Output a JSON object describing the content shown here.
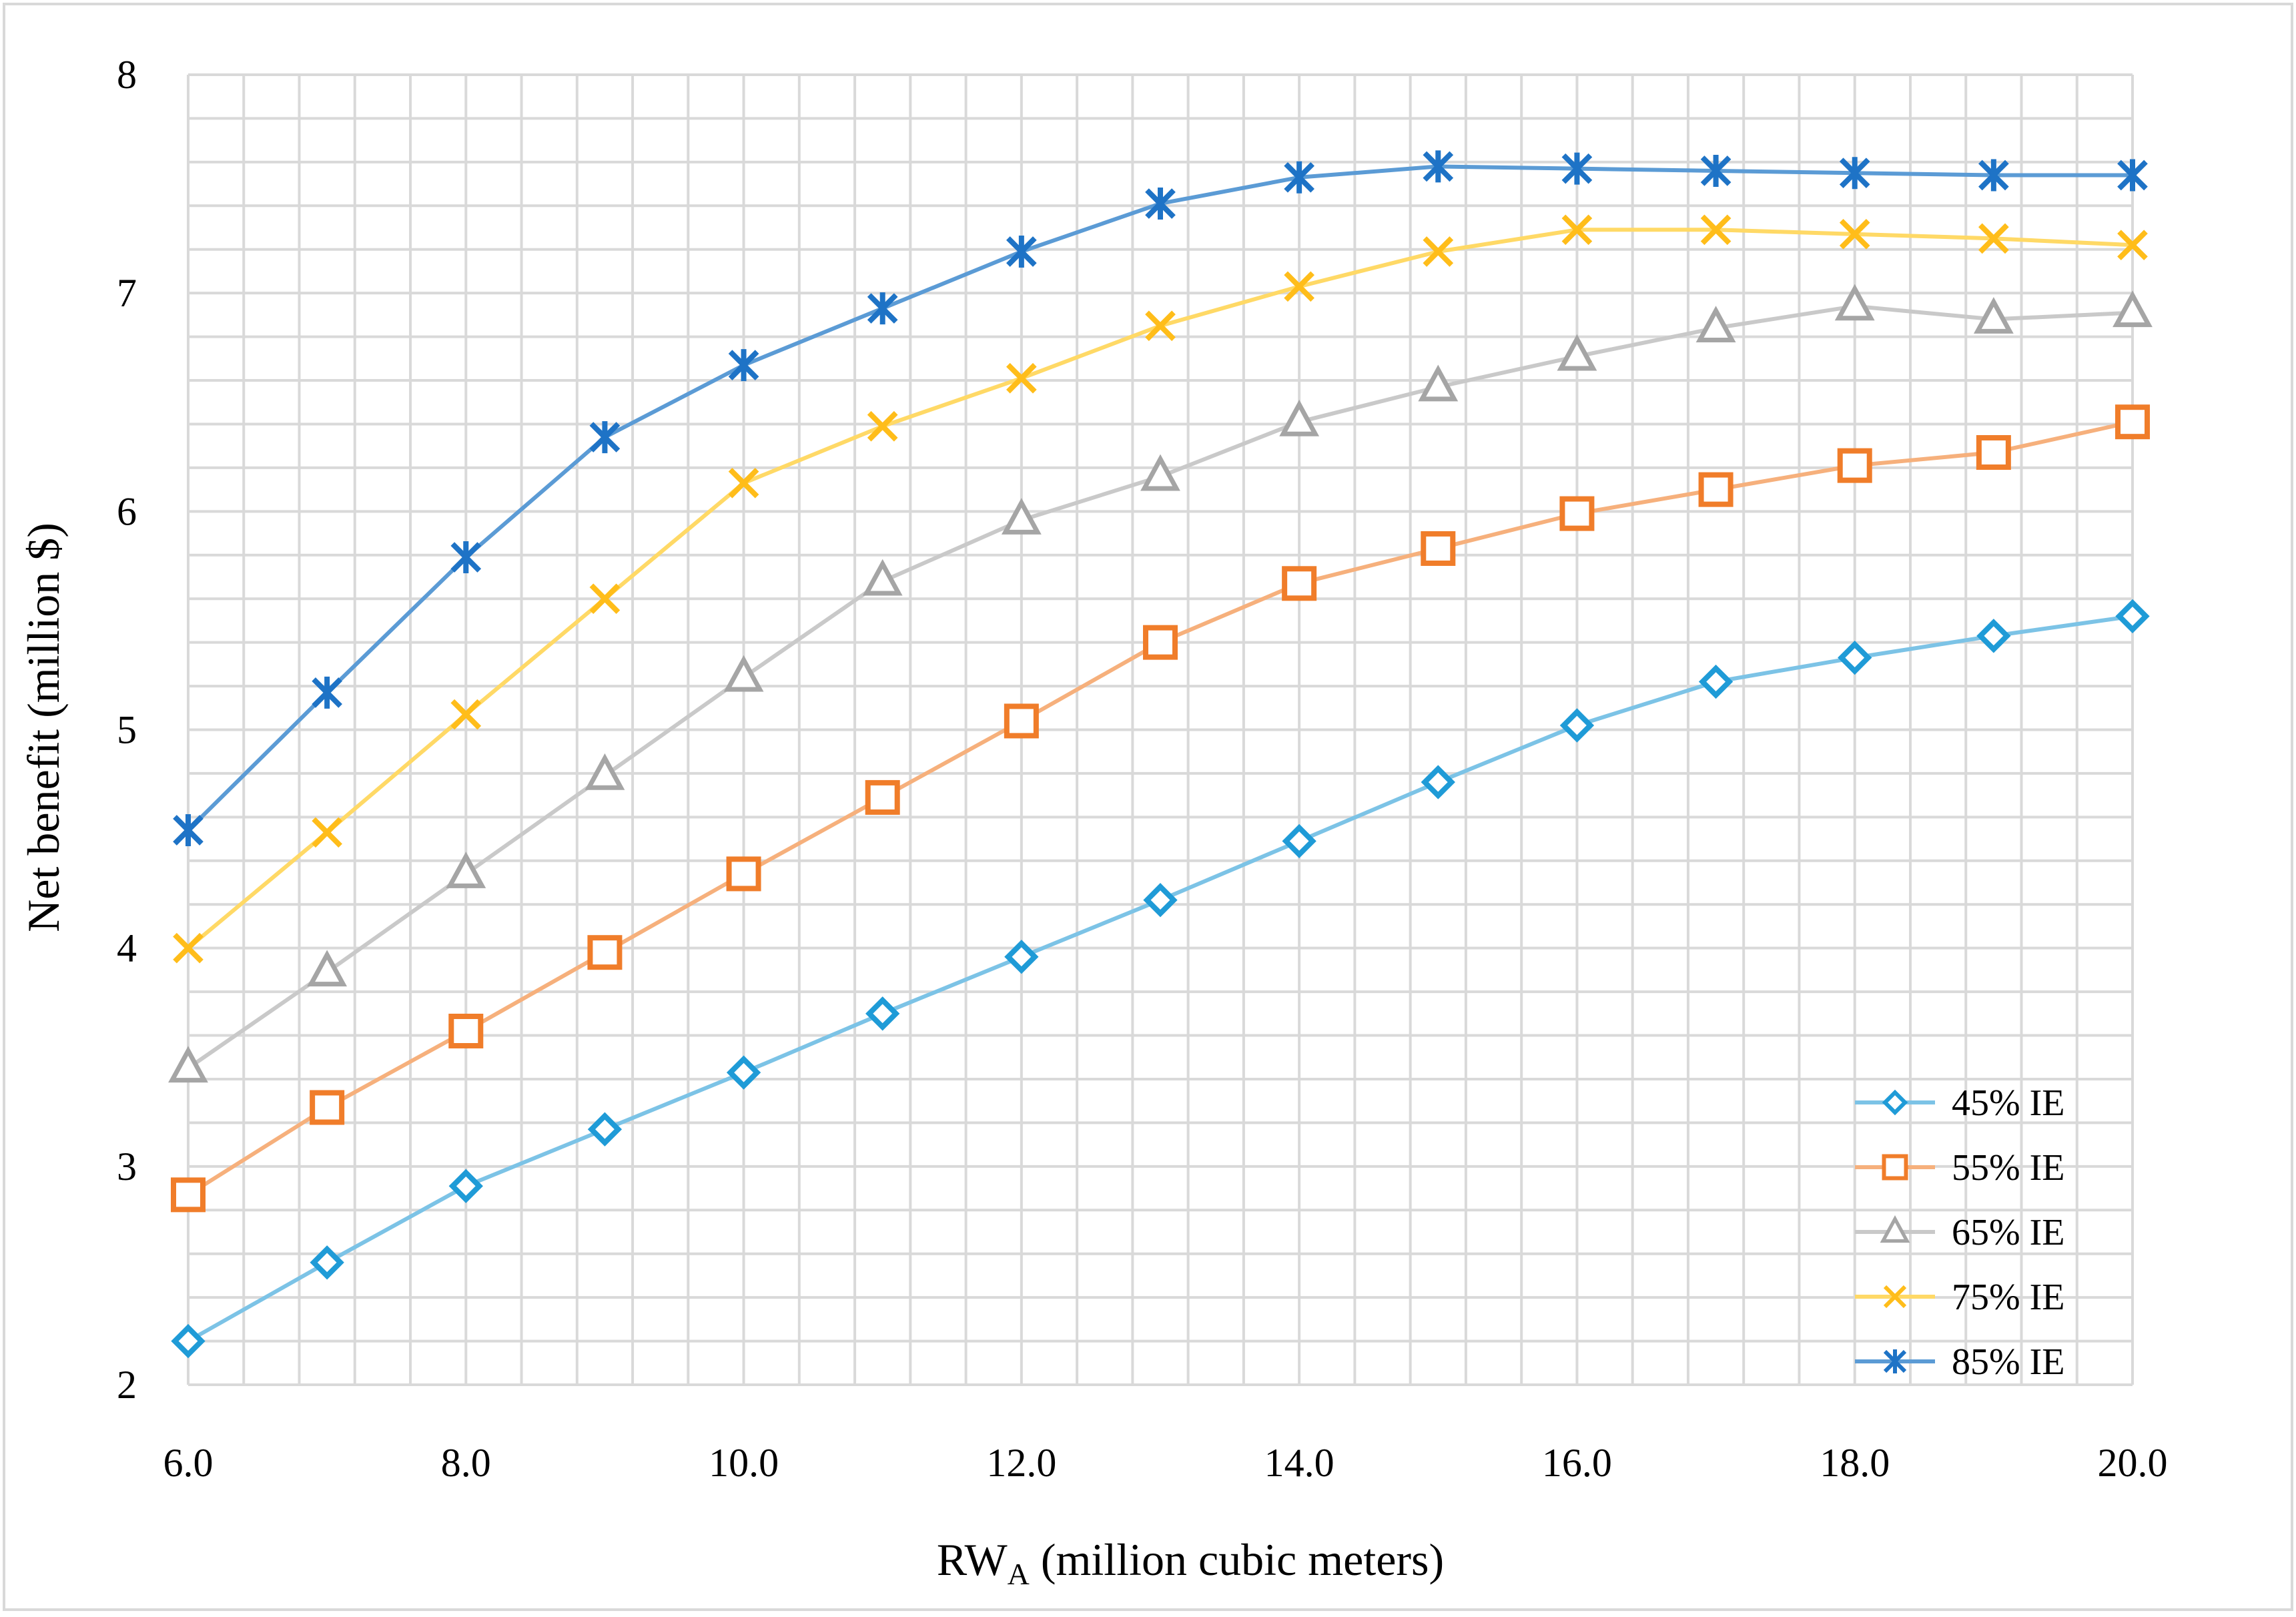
{
  "chart_data": {
    "type": "line",
    "title": "",
    "xlabel": "RW",
    "xlabel_subscript": "A",
    "xlabel_suffix": " (million cubic meters)",
    "ylabel": "Net benefit (million $)",
    "xlim": [
      6,
      20
    ],
    "ylim": [
      2,
      8
    ],
    "grid": true,
    "legend_position": "bottom-right",
    "x_tick_labels": [
      "6.0",
      "8.0",
      "10.0",
      "12.0",
      "14.0",
      "16.0",
      "18.0",
      "20.0"
    ],
    "y_tick_labels": [
      "2",
      "3",
      "4",
      "5",
      "6",
      "7",
      "8"
    ],
    "x": [
      6,
      7,
      8,
      9,
      10,
      11,
      12,
      13,
      14,
      15,
      16,
      17,
      18,
      19,
      20
    ],
    "series": [
      {
        "name": "45% IE",
        "marker": "diamond",
        "color": "#1f9bd7",
        "line_color": "#7cc3e6",
        "values": [
          2.2,
          2.56,
          2.91,
          3.17,
          3.43,
          3.7,
          3.96,
          4.22,
          4.49,
          4.76,
          5.02,
          5.22,
          5.33,
          5.43,
          5.52
        ]
      },
      {
        "name": "55% IE",
        "marker": "square",
        "color": "#f07d2a",
        "line_color": "#f6b07c",
        "values": [
          2.87,
          3.27,
          3.62,
          3.98,
          4.34,
          4.69,
          5.04,
          5.4,
          5.67,
          5.83,
          5.99,
          6.1,
          6.21,
          6.27,
          6.41
        ]
      },
      {
        "name": "65% IE",
        "marker": "triangle",
        "color": "#a5a5a5",
        "line_color": "#c9c9c9",
        "values": [
          3.45,
          3.89,
          4.34,
          4.79,
          5.24,
          5.68,
          5.96,
          6.16,
          6.41,
          6.57,
          6.71,
          6.84,
          6.94,
          6.88,
          6.91
        ]
      },
      {
        "name": "75% IE",
        "marker": "x",
        "color": "#ffbd1a",
        "line_color": "#ffd966",
        "values": [
          4.0,
          4.53,
          5.07,
          5.6,
          6.13,
          6.39,
          6.61,
          6.85,
          7.03,
          7.19,
          7.29,
          7.29,
          7.27,
          7.25,
          7.22
        ]
      },
      {
        "name": "85% IE",
        "marker": "star",
        "color": "#1e73c6",
        "line_color": "#5b9bd5",
        "values": [
          4.54,
          5.17,
          5.79,
          6.34,
          6.67,
          6.93,
          7.19,
          7.41,
          7.53,
          7.58,
          7.57,
          7.56,
          7.55,
          7.54,
          7.54
        ]
      }
    ]
  }
}
